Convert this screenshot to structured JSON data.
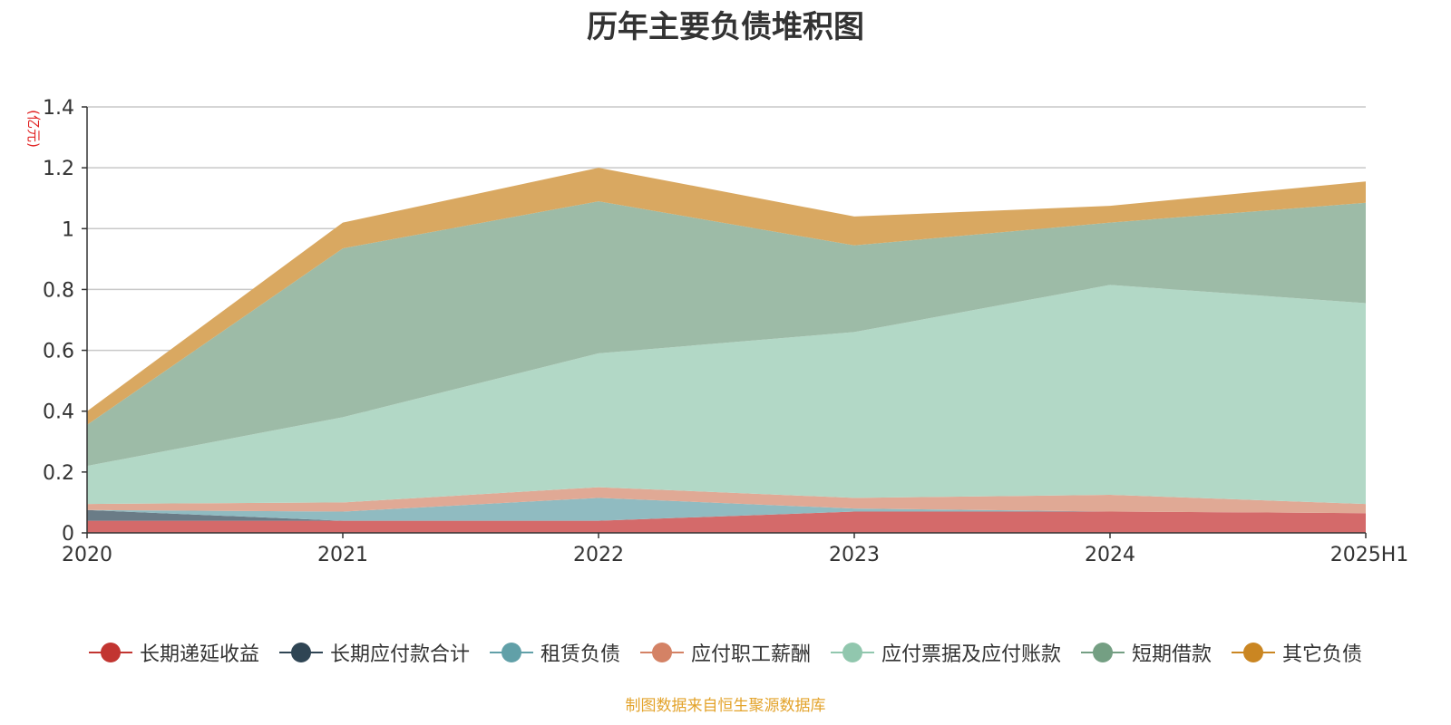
{
  "page_title": "历年主要负债堆积图",
  "source_note": "制图数据来自恒生聚源数据库",
  "colors": {
    "axis": "#333333",
    "grid": "#c8c8c8",
    "ylabel": "#e02020",
    "title": "#333333",
    "source": "#e3a32b"
  },
  "chart_data": {
    "type": "area",
    "stacked": true,
    "title": "历年主要负债堆积图",
    "ylabel": "(亿元)",
    "xlabel": "",
    "ylim": [
      0,
      1.4
    ],
    "yticks": [
      0,
      0.2,
      0.4,
      0.6,
      0.8,
      1,
      1.2,
      1.4
    ],
    "ytick_labels": [
      "0",
      "0.2",
      "0.4",
      "0.6",
      "0.8",
      "1",
      "1.2",
      "1.4"
    ],
    "categories": [
      "2020",
      "2021",
      "2022",
      "2023",
      "2024",
      "2025H1"
    ],
    "grid": true,
    "legend_position": "bottom",
    "series": [
      {
        "name": "长期递延收益",
        "color": "#c23531",
        "fill": "#d46a6a",
        "values": [
          0.04,
          0.04,
          0.04,
          0.07,
          0.07,
          0.065
        ]
      },
      {
        "name": "长期应付款合计",
        "color": "#2f4554",
        "fill": "#6a7c87",
        "values": [
          0.035,
          0.0,
          0.0,
          0.0,
          0.0,
          0.0
        ]
      },
      {
        "name": "租赁负债",
        "color": "#61a0a8",
        "fill": "#90bbc1",
        "values": [
          0.0,
          0.03,
          0.075,
          0.01,
          0.0,
          0.0
        ]
      },
      {
        "name": "应付职工薪酬",
        "color": "#d48265",
        "fill": "#e0a995",
        "values": [
          0.02,
          0.03,
          0.035,
          0.035,
          0.055,
          0.03
        ]
      },
      {
        "name": "应付票据及应付账款",
        "color": "#91c7ae",
        "fill": "#b2d8c6",
        "values": [
          0.125,
          0.28,
          0.44,
          0.545,
          0.69,
          0.66
        ]
      },
      {
        "name": "短期借款",
        "color": "#749f83",
        "fill": "#9dbba7",
        "values": [
          0.135,
          0.555,
          0.5,
          0.285,
          0.205,
          0.33
        ]
      },
      {
        "name": "其它负债",
        "color": "#ca8622",
        "fill": "#d9a861",
        "values": [
          0.045,
          0.085,
          0.11,
          0.095,
          0.055,
          0.07
        ]
      }
    ]
  }
}
